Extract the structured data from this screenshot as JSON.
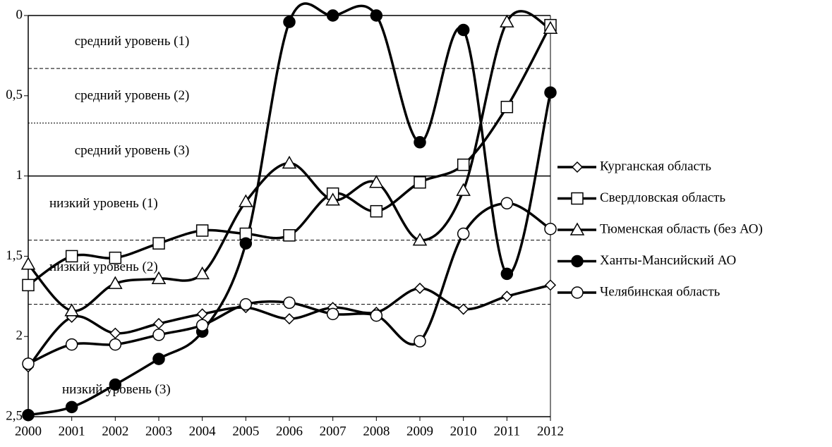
{
  "chart_data": {
    "type": "line",
    "categories": [
      "2000",
      "2001",
      "2002",
      "2003",
      "2004",
      "2005",
      "2006",
      "2007",
      "2008",
      "2009",
      "2010",
      "2011",
      "2012"
    ],
    "series": [
      {
        "name": "Курганская область",
        "color": "#000000",
        "marker": "diamond",
        "values": [
          2.19,
          1.88,
          1.98,
          1.92,
          1.86,
          1.82,
          1.89,
          1.82,
          1.85,
          1.7,
          1.83,
          1.75,
          1.68
        ]
      },
      {
        "name": "Свердловская область",
        "color": "#000000",
        "marker": "square",
        "values": [
          1.68,
          1.5,
          1.51,
          1.42,
          1.34,
          1.36,
          1.37,
          1.11,
          1.22,
          1.04,
          0.93,
          0.57,
          0.06
        ]
      },
      {
        "name": "Тюменская область (без АО)",
        "color": "#000000",
        "marker": "triangle",
        "values": [
          1.55,
          1.84,
          1.67,
          1.64,
          1.61,
          1.16,
          0.92,
          1.15,
          1.04,
          1.4,
          1.09,
          0.04,
          0.08
        ]
      },
      {
        "name": "Ханты-Мансийский АО",
        "color": "#000000",
        "marker": "filled-circle",
        "values": [
          2.49,
          2.44,
          2.3,
          2.14,
          1.97,
          1.42,
          0.04,
          0,
          0,
          0.79,
          0.09,
          1.61,
          0.48
        ]
      },
      {
        "name": "Челябинская область",
        "color": "#000000",
        "marker": "circle",
        "values": [
          2.17,
          2.05,
          2.05,
          1.99,
          1.93,
          1.8,
          1.79,
          1.86,
          1.87,
          2.03,
          1.36,
          1.17,
          1.33
        ]
      }
    ],
    "ylim": [
      0,
      2.5
    ],
    "y_inverted": true,
    "smooth": true,
    "yticks": [
      0,
      {
        "value": 0.5,
        "label": "0,5"
      },
      1,
      {
        "value": 1.5,
        "label": "1,5"
      },
      2,
      {
        "value": 2.5,
        "label": "2,5"
      }
    ],
    "reference_lines": [
      {
        "value": 0.33,
        "style": "dashed"
      },
      {
        "value": 0.67,
        "style": "dotted"
      },
      {
        "value": 1,
        "style": "solid"
      },
      {
        "value": 1.4,
        "style": "dashed"
      },
      {
        "value": 1.8,
        "style": "dashed"
      }
    ],
    "annotations": [
      "средний уровень (1)",
      "средний уровень (2)",
      "средний уровень (3)",
      "низкий уровень (1)",
      "низкий уровень (2)",
      "низкий уровень (3)"
    ],
    "legend": "right"
  }
}
